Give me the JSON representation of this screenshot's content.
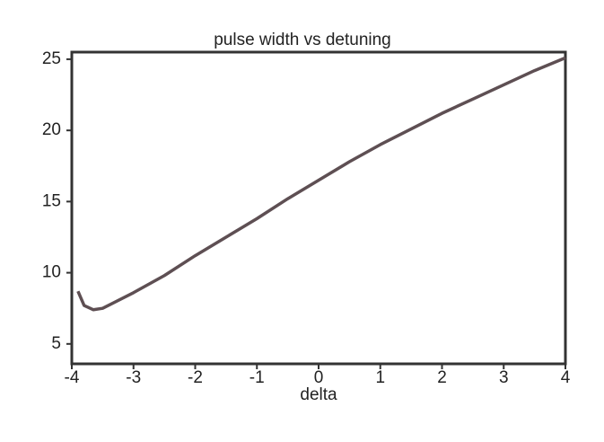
{
  "chart_data": {
    "type": "line",
    "title": "pulse width vs detuning",
    "x_label": "delta",
    "x": [
      -3.9,
      -3.8,
      -3.65,
      -3.5,
      -3.0,
      -2.5,
      -2.0,
      -1.5,
      -1.0,
      -0.5,
      0,
      0.5,
      1.0,
      1.5,
      2.0,
      2.5,
      3.0,
      3.5,
      4.0
    ],
    "series": [
      {
        "name": "pulse width",
        "color": "#5e4f53",
        "values": [
          8.7,
          7.7,
          7.4,
          7.5,
          8.6,
          9.8,
          11.2,
          12.5,
          13.8,
          15.2,
          16.5,
          17.8,
          19.0,
          20.1,
          21.2,
          22.2,
          23.2,
          24.2,
          25.1
        ]
      }
    ],
    "xlim": [
      -4,
      4
    ],
    "xticks": [
      -4,
      -3,
      -2,
      -1,
      0,
      1,
      2,
      3,
      4
    ],
    "ylim": [
      3.6,
      25.5
    ],
    "yticks": [
      5,
      10,
      15,
      20,
      25
    ],
    "grid": false
  }
}
